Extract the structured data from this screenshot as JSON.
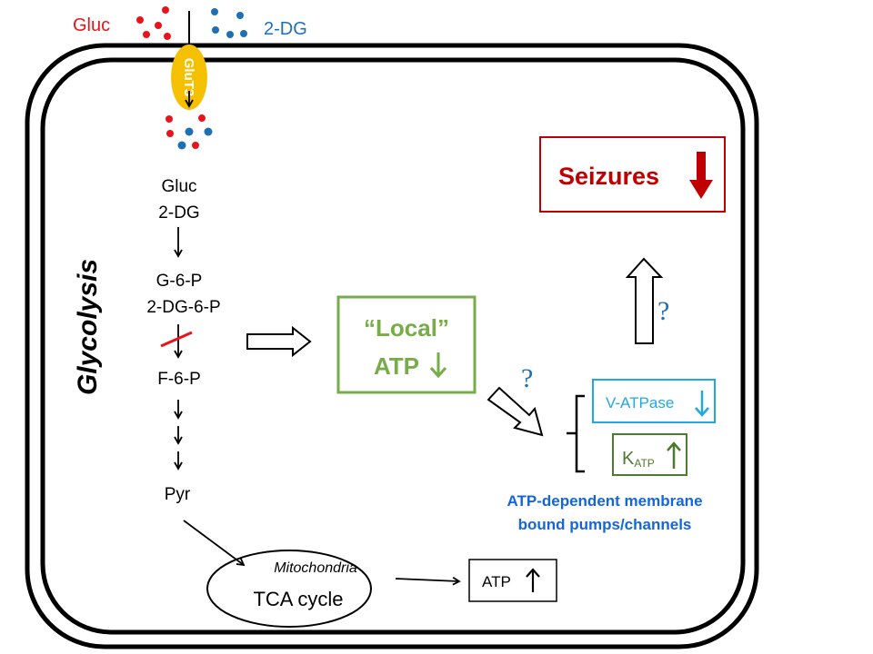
{
  "outside": {
    "gluc_label": "Gluc",
    "dg_label": "2-DG",
    "transporter": "GluT3"
  },
  "glycolysis": {
    "title": "Glycolysis",
    "steps": [
      "Gluc",
      "2-DG",
      "G-6-P",
      "2-DG-6-P",
      "F-6-P",
      "Pyr"
    ]
  },
  "mitochondria": {
    "label": "Mitochondria",
    "cycle": "TCA cycle",
    "atp_label": "ATP",
    "atp_direction": "up"
  },
  "local_atp": {
    "line1": "“Local”",
    "line2": "ATP",
    "direction": "down"
  },
  "question_marks": [
    "?",
    "?"
  ],
  "pumps": {
    "vatpase": "V-ATPase",
    "vatpase_direction": "down",
    "katp_main": "K",
    "katp_sub": "ATP",
    "katp_direction": "up",
    "caption_line1": "ATP-dependent membrane",
    "caption_line2": "bound pumps/channels"
  },
  "seizures": {
    "label": "Seizures",
    "direction": "down"
  },
  "colors": {
    "gluc": "#E8141B",
    "dg": "#1F6FB5",
    "glut3": "#F5C000",
    "local_atp": "#77AC48",
    "vatpase": "#22A8DE",
    "katp": "#4C7A2E",
    "caption": "#1466E0",
    "seizures": "#C00000"
  }
}
